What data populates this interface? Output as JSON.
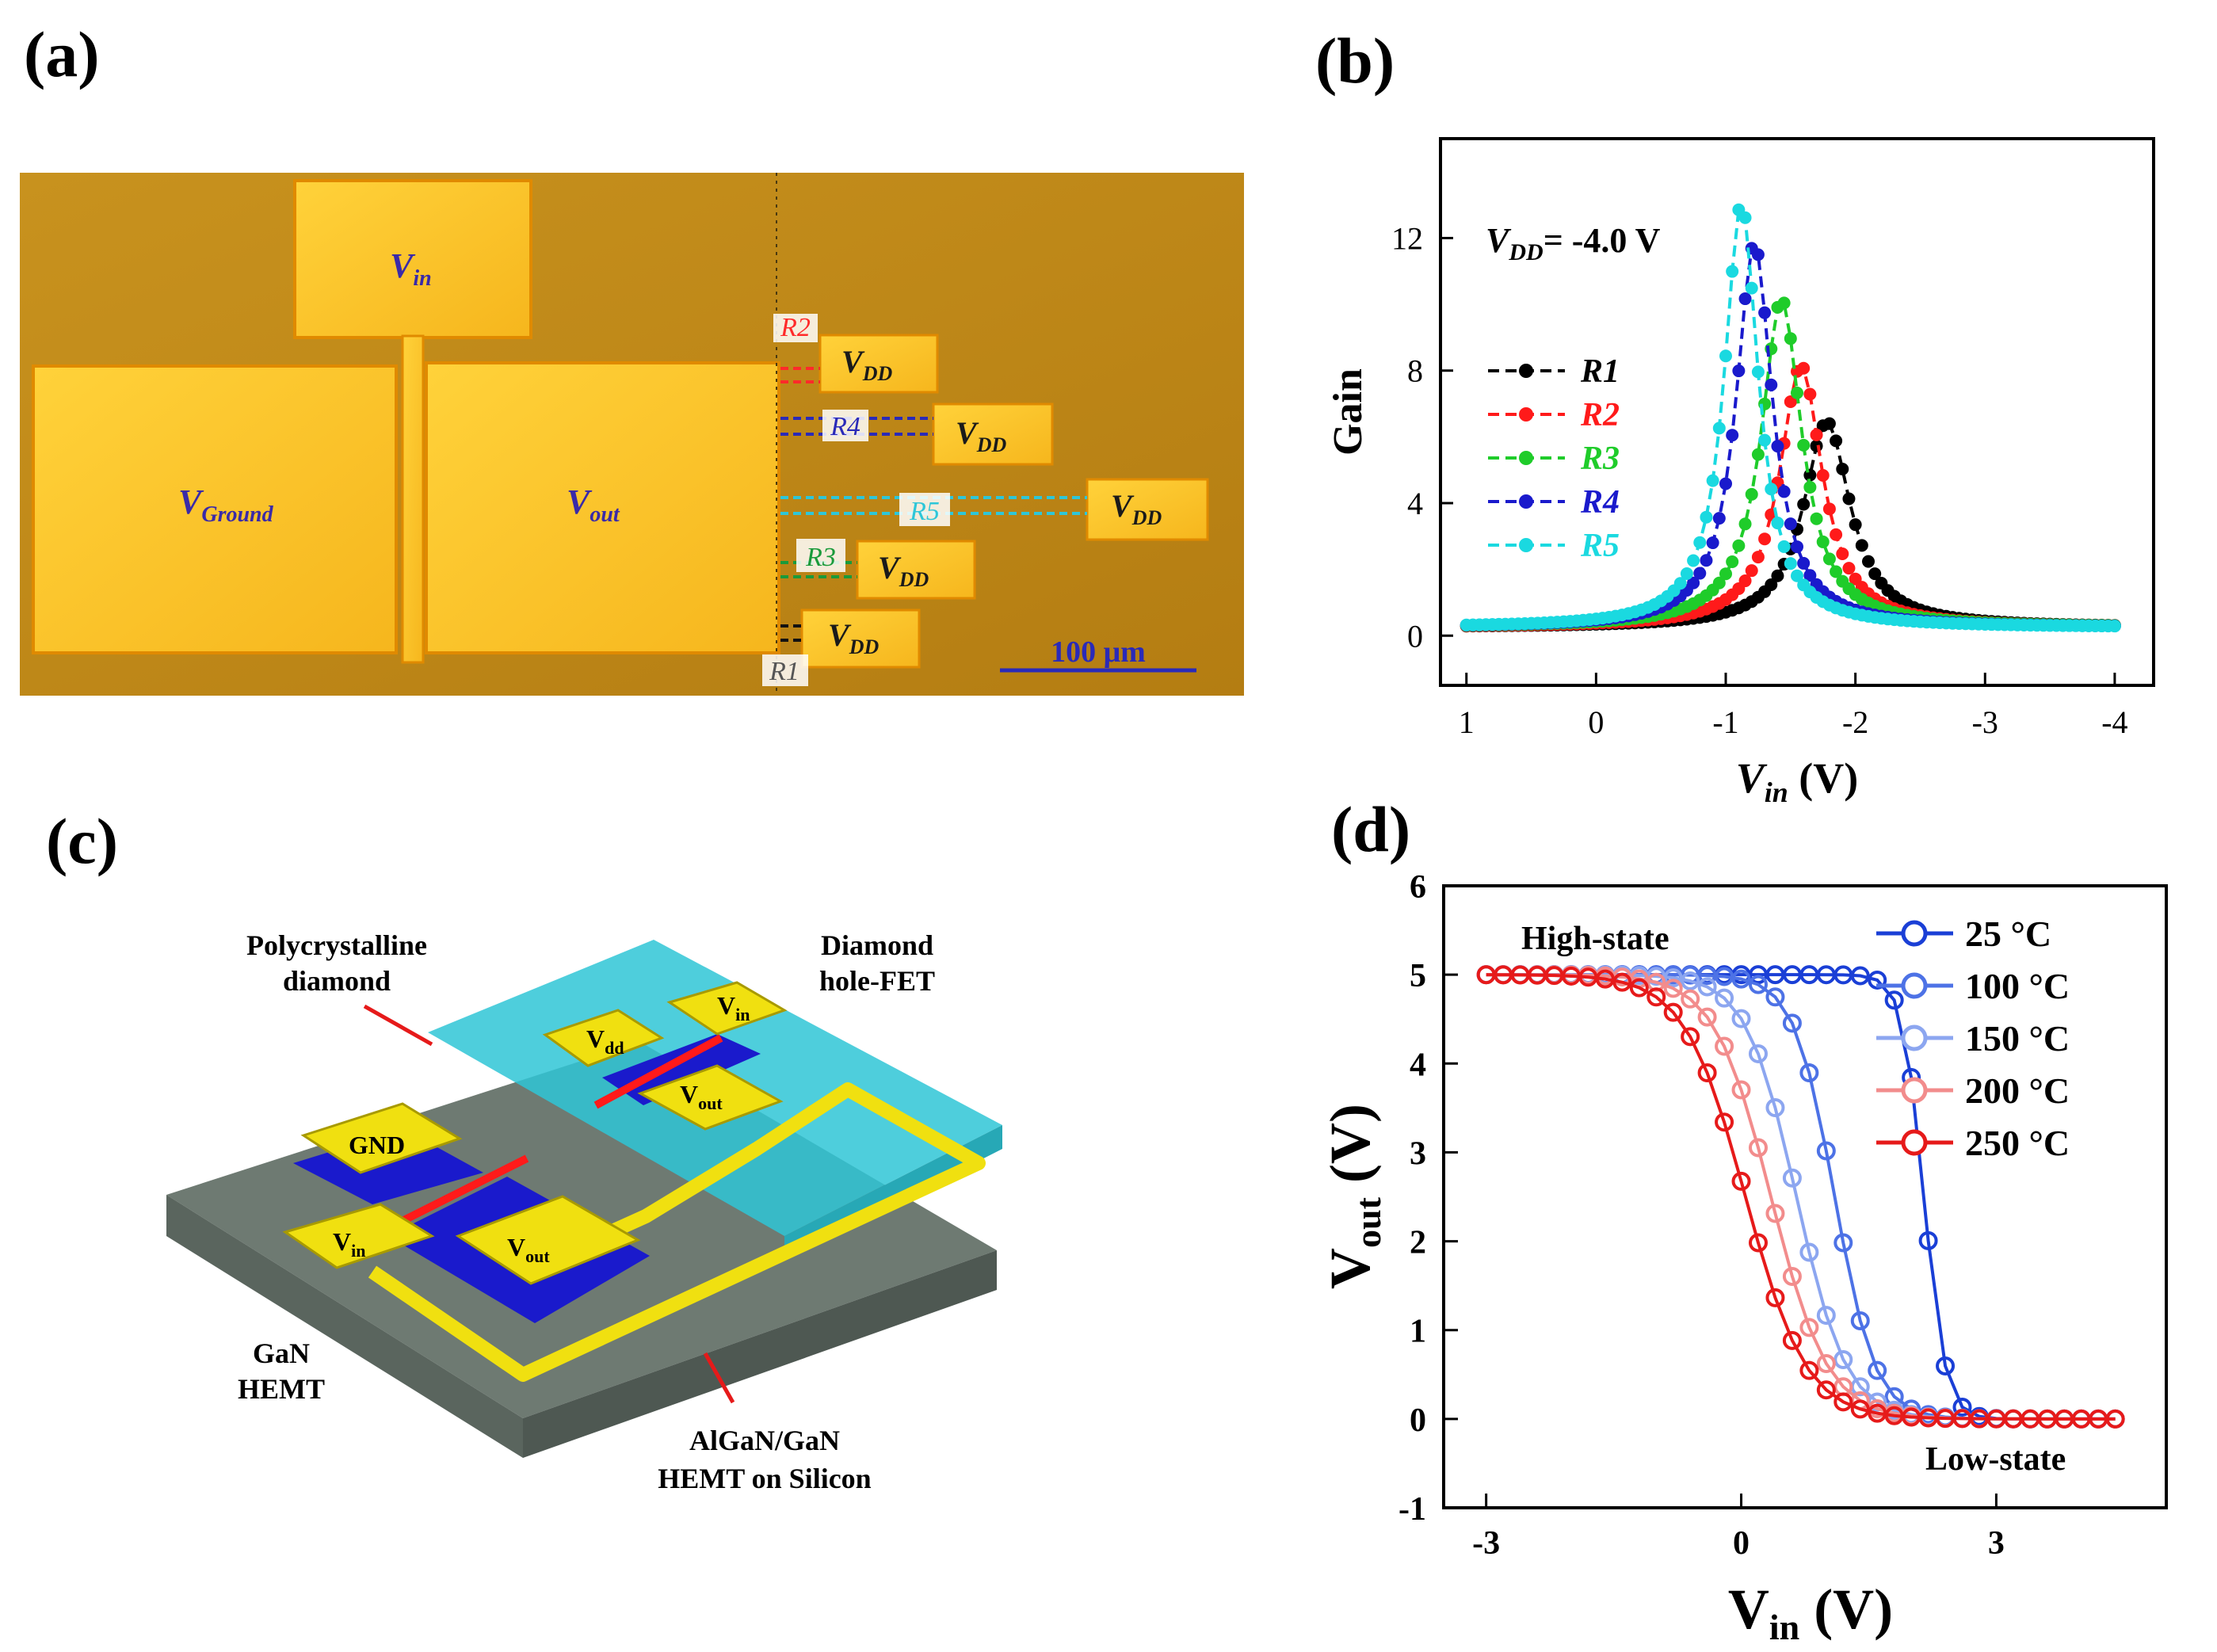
{
  "panels": {
    "a": {
      "label": "(a)",
      "vin": "V",
      "vin_sub": "in",
      "vground": "V",
      "vground_sub": "Ground",
      "vout": "V",
      "vout_sub": "out",
      "vdd": "V",
      "vdd_sub": "DD",
      "resistors": [
        "R2",
        "R4",
        "R5",
        "R3",
        "R1"
      ],
      "scale_bar": "100 μm"
    },
    "b": {
      "label": "(b)"
    },
    "c": {
      "label": "(c)",
      "poly_diamond": [
        "Polycrystalline",
        "diamond"
      ],
      "diamond_fet": [
        "Diamond",
        "hole-FET"
      ],
      "gan_hemt": [
        "GaN",
        "HEMT"
      ],
      "algan": [
        "AlGaN/GaN",
        "HEMT on Silicon"
      ],
      "pad_vdd": "V",
      "pad_vdd_sub": "dd",
      "pad_vin": "V",
      "pad_vin_sub": "in",
      "pad_vout": "V",
      "pad_vout_sub": "out",
      "pad_gnd": "GND"
    },
    "d": {
      "label": "(d)",
      "high_state": "High-state",
      "low_state": "Low-state"
    }
  },
  "chart_data": [
    {
      "type": "line",
      "panel": "b",
      "annotation": "V",
      "annotation_sub": "DD",
      "annotation_rest": "= -4.0 V",
      "xlabel": "V",
      "xlabel_sub": "in",
      "xlabel_rest": " (V)",
      "ylabel": "Gain",
      "xlim": [
        1.2,
        -4.3
      ],
      "ylim": [
        -1.5,
        15
      ],
      "xticks": [
        1,
        0,
        -1,
        -2,
        -3,
        -4
      ],
      "xtick_labels": [
        "1",
        "0",
        "-1",
        "-2",
        "-3",
        "-4"
      ],
      "yticks": [
        0,
        4,
        8,
        12
      ],
      "ytick_labels": [
        "0",
        "4",
        "8",
        "12"
      ],
      "series": [
        {
          "name": "R1",
          "color": "#000000",
          "peak_x": -1.78,
          "peak": 6.2,
          "width": 0.22
        },
        {
          "name": "R2",
          "color": "#ff1a1a",
          "peak_x": -1.58,
          "peak": 7.9,
          "width": 0.2
        },
        {
          "name": "R3",
          "color": "#1fcc2a",
          "peak_x": -1.43,
          "peak": 9.9,
          "width": 0.19
        },
        {
          "name": "R4",
          "color": "#1a1acc",
          "peak_x": -1.22,
          "peak": 11.6,
          "width": 0.17
        },
        {
          "name": "R5",
          "color": "#1ad9e0",
          "peak_x": -1.12,
          "peak": 12.8,
          "width": 0.16
        }
      ]
    },
    {
      "type": "line",
      "panel": "d",
      "xlabel": "V",
      "xlabel_sub": "in",
      "xlabel_rest": " (V)",
      "ylabel": "V",
      "ylabel_sub": "out",
      "ylabel_rest": " (V)",
      "xlim": [
        -3.5,
        5
      ],
      "ylim": [
        -1,
        6
      ],
      "xticks": [
        -3,
        0,
        3
      ],
      "xtick_labels": [
        "-3",
        "0",
        "3"
      ],
      "yticks": [
        -1,
        0,
        1,
        2,
        3,
        4,
        5,
        6
      ],
      "ytick_labels": [
        "-1",
        "0",
        "1",
        "2",
        "3",
        "4",
        "5",
        "6"
      ],
      "series": [
        {
          "name": "25 °C",
          "color": "#1a3fd6",
          "mid": 2.15,
          "k": 8.0,
          "start": -3.0
        },
        {
          "name": "100 °C",
          "color": "#4d72e6",
          "mid": 1.1,
          "k": 4.2,
          "start": -3.0
        },
        {
          "name": "150 °C",
          "color": "#8ca6f0",
          "mid": 0.65,
          "k": 3.4,
          "start": -3.0
        },
        {
          "name": "200 °C",
          "color": "#f28c8c",
          "mid": 0.35,
          "k": 3.0,
          "start": -3.0
        },
        {
          "name": "250 °C",
          "color": "#e61a1a",
          "mid": 0.05,
          "k": 2.8,
          "start": -3.0
        }
      ]
    }
  ]
}
